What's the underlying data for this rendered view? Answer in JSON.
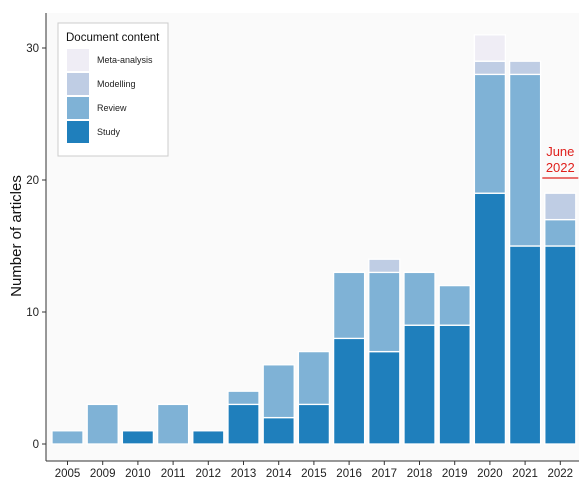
{
  "chart_data": {
    "type": "bar",
    "stacked": true,
    "categories": [
      "2005",
      "2009",
      "2010",
      "2011",
      "2012",
      "2013",
      "2014",
      "2015",
      "2016",
      "2017",
      "2018",
      "2019",
      "2020",
      "2021",
      "2022"
    ],
    "series": [
      {
        "name": "Study",
        "color": "#1f7fbc",
        "values": [
          0,
          0,
          1,
          0,
          1,
          3,
          2,
          3,
          8,
          7,
          9,
          9,
          19,
          15,
          15
        ]
      },
      {
        "name": "Review",
        "color": "#7fb2d6",
        "values": [
          1,
          3,
          0,
          3,
          0,
          1,
          4,
          4,
          5,
          6,
          4,
          3,
          9,
          13,
          2
        ]
      },
      {
        "name": "Modelling",
        "color": "#bfcde4",
        "values": [
          0,
          0,
          0,
          0,
          0,
          0,
          0,
          0,
          0,
          1,
          0,
          0,
          1,
          1,
          2
        ]
      },
      {
        "name": "Meta-analysis",
        "color": "#efedf5",
        "values": [
          0,
          0,
          0,
          0,
          0,
          0,
          0,
          0,
          0,
          0,
          0,
          0,
          2,
          0,
          0
        ]
      }
    ],
    "xlabel": "",
    "ylabel": "Number of articles",
    "ylim": [
      0,
      31.5
    ],
    "yticks": [
      0,
      10,
      20,
      30
    ],
    "grid": false,
    "legend": {
      "title": "Document content",
      "placement": "top-left",
      "order": [
        "Meta-analysis",
        "Modelling",
        "Review",
        "Study"
      ]
    },
    "annotation": {
      "category": "2022",
      "lines": [
        "June",
        "2022"
      ],
      "color": "#e0201c"
    }
  }
}
